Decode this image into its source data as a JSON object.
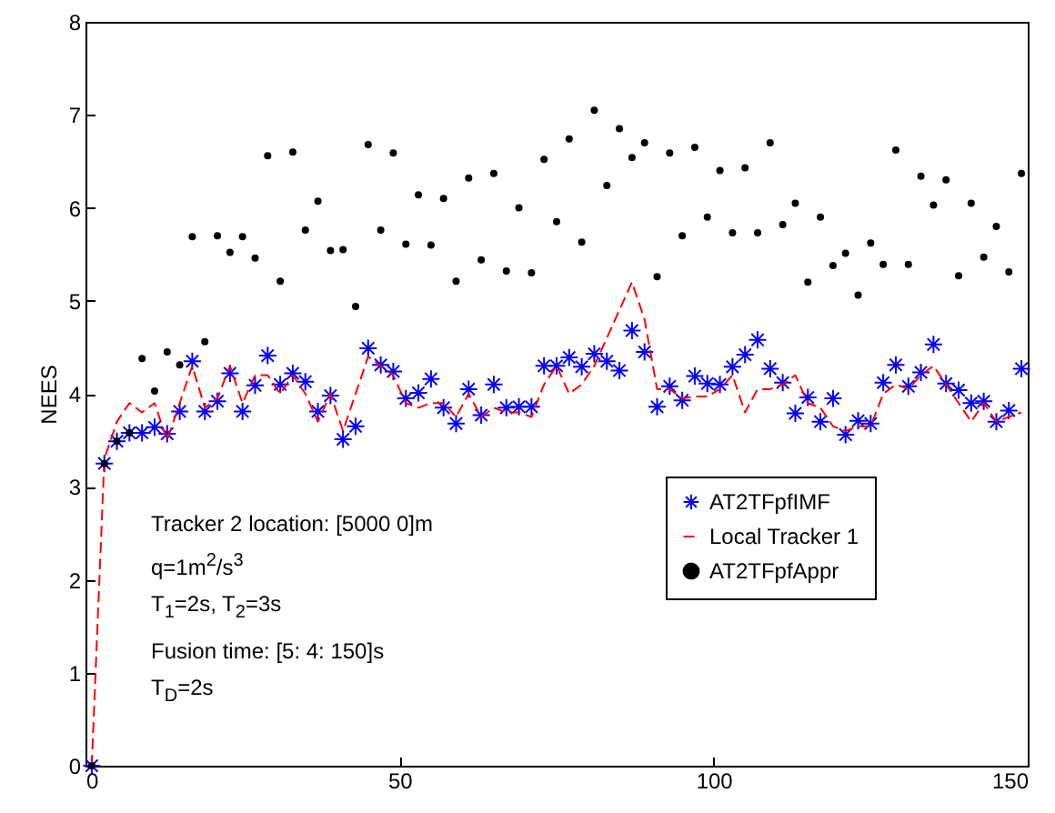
{
  "chart_data": {
    "type": "scatter",
    "ylabel": "NEES",
    "x": [
      1,
      3,
      5,
      7,
      9,
      11,
      13,
      15,
      17,
      19,
      21,
      23,
      25,
      27,
      29,
      31,
      33,
      35,
      37,
      39,
      41,
      43,
      45,
      47,
      49,
      51,
      53,
      55,
      57,
      59,
      61,
      63,
      65,
      67,
      69,
      71,
      73,
      75,
      77,
      79,
      81,
      83,
      85,
      87,
      89,
      91,
      93,
      95,
      97,
      99,
      101,
      103,
      105,
      107,
      109,
      111,
      113,
      115,
      117,
      119,
      121,
      123,
      125,
      127,
      129,
      131,
      133,
      135,
      137,
      139,
      141,
      143,
      145,
      147,
      149
    ],
    "series": [
      {
        "name": "AT2TFpfIMF",
        "marker": "cross",
        "color": "#0000ff",
        "values": [
          0,
          3.25,
          3.49,
          3.58,
          3.58,
          3.64,
          3.57,
          3.81,
          4.35,
          3.81,
          3.92,
          4.22,
          3.81,
          4.09,
          4.41,
          4.1,
          4.22,
          4.13,
          3.81,
          3.98,
          3.51,
          3.65,
          4.49,
          4.31,
          4.24,
          3.95,
          4.01,
          4.16,
          3.85,
          3.68,
          4.05,
          3.77,
          4.1,
          3.85,
          3.86,
          3.86,
          4.3,
          4.3,
          4.39,
          4.29,
          4.43,
          4.35,
          4.25,
          4.68,
          4.45,
          3.86,
          4.08,
          3.93,
          4.19,
          4.11,
          4.1,
          4.29,
          4.42,
          4.58,
          4.27,
          4.12,
          3.79,
          3.96,
          3.7,
          3.95,
          3.56,
          3.71,
          3.68,
          4.12,
          4.31,
          4.08,
          4.23,
          4.53,
          4.11,
          4.04,
          3.9,
          3.92,
          3.7,
          3.82,
          4.27
        ]
      },
      {
        "name": "Local Tracker 1",
        "type": "line",
        "marker": "none",
        "line_style": "dashed",
        "color": "#ff0000",
        "values": [
          0,
          3.3,
          3.7,
          3.9,
          3.8,
          3.9,
          3.5,
          3.9,
          4.3,
          3.85,
          3.95,
          4.3,
          3.9,
          4.2,
          4.2,
          4.0,
          4.2,
          4.0,
          3.7,
          4.0,
          3.6,
          4.0,
          4.4,
          4.3,
          4.2,
          3.9,
          3.85,
          3.9,
          3.9,
          3.75,
          4.0,
          3.75,
          3.85,
          3.8,
          3.8,
          3.75,
          4.1,
          4.3,
          4.0,
          4.1,
          4.3,
          4.6,
          4.9,
          5.2,
          4.8,
          4.05,
          4.05,
          3.95,
          3.97,
          3.97,
          4.05,
          4.2,
          3.8,
          4.05,
          4.05,
          4.1,
          4.2,
          3.9,
          3.85,
          3.65,
          3.6,
          3.65,
          3.65,
          4.0,
          4.1,
          4.05,
          4.2,
          4.3,
          4.1,
          3.9,
          3.7,
          3.9,
          3.7,
          3.75,
          3.8
        ]
      },
      {
        "name": "AT2TFpfAppr",
        "marker": "circle",
        "color": "#000000",
        "values": [
          0,
          3.25,
          3.49,
          3.58,
          4.38,
          4.03,
          4.45,
          4.31,
          5.69,
          4.56,
          5.7,
          5.52,
          5.69,
          5.46,
          6.56,
          5.21,
          6.6,
          5.76,
          6.07,
          5.54,
          5.55,
          4.94,
          6.68,
          5.76,
          6.59,
          5.61,
          6.14,
          5.6,
          6.1,
          5.21,
          6.32,
          5.44,
          6.37,
          5.32,
          6.0,
          5.3,
          6.52,
          5.85,
          6.74,
          5.63,
          7.05,
          6.24,
          6.85,
          6.54,
          6.7,
          5.26,
          6.59,
          5.7,
          6.65,
          5.9,
          6.4,
          5.73,
          6.43,
          5.73,
          6.7,
          5.82,
          6.05,
          5.2,
          5.9,
          5.38,
          5.51,
          5.06,
          5.62,
          5.39,
          6.62,
          5.39,
          6.34,
          6.03,
          6.3,
          5.27,
          6.05,
          5.47,
          5.8,
          5.31,
          6.37
        ]
      }
    ],
    "xlim": [
      0,
      150
    ],
    "xticks": [
      0,
      50,
      100,
      150
    ],
    "ylim": [
      0,
      8
    ],
    "yticks": [
      0,
      1,
      2,
      3,
      4,
      5,
      6,
      7,
      8
    ],
    "grid": false,
    "legend": "bottom right",
    "annotations": [
      "Tracker 2 location: [5000 0]m",
      "q=1m$^{2}$/s$^{3}$",
      "T$_{1}$=2s, T$_{2}$=3s",
      "Fusion time: [5: 4: 150]s",
      "T$_{D}$=2s"
    ]
  }
}
